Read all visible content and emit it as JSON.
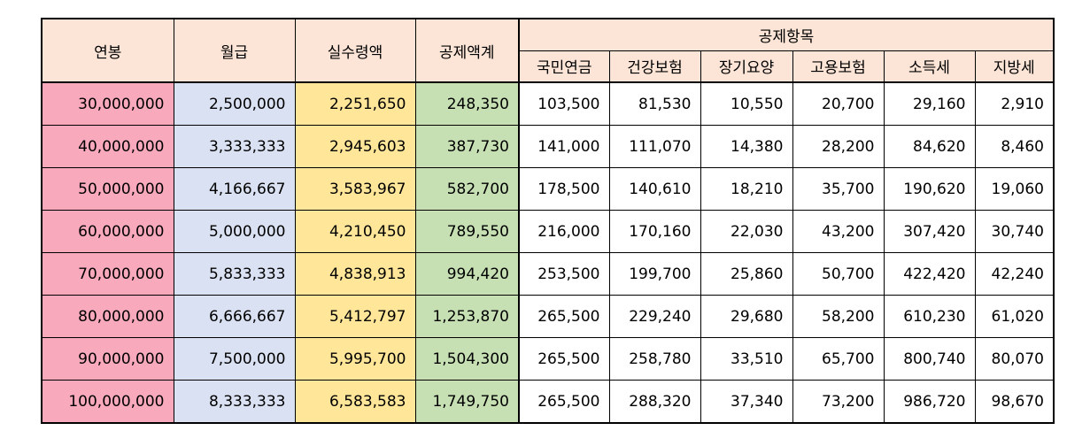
{
  "table": {
    "headers": {
      "annual": "연봉",
      "monthly": "월급",
      "net": "실수령액",
      "deduction_total": "공제액계",
      "deduction_items_group": "공제항목",
      "deduction_items": [
        "국민연금",
        "건강보험",
        "장기요양",
        "고용보험",
        "소득세",
        "지방세"
      ]
    },
    "rows": [
      [
        "30,000,000",
        "2,500,000",
        "2,251,650",
        "248,350",
        "103,500",
        "81,530",
        "10,550",
        "20,700",
        "29,160",
        "2,910"
      ],
      [
        "40,000,000",
        "3,333,333",
        "2,945,603",
        "387,730",
        "141,000",
        "111,070",
        "14,380",
        "28,200",
        "84,620",
        "8,460"
      ],
      [
        "50,000,000",
        "4,166,667",
        "3,583,967",
        "582,700",
        "178,500",
        "140,610",
        "18,210",
        "35,700",
        "190,620",
        "19,060"
      ],
      [
        "60,000,000",
        "5,000,000",
        "4,210,450",
        "789,550",
        "216,000",
        "170,160",
        "22,030",
        "43,200",
        "307,420",
        "30,740"
      ],
      [
        "70,000,000",
        "5,833,333",
        "4,838,913",
        "994,420",
        "253,500",
        "199,700",
        "25,860",
        "50,700",
        "422,420",
        "42,240"
      ],
      [
        "80,000,000",
        "6,666,667",
        "5,412,797",
        "1,253,870",
        "265,500",
        "229,240",
        "29,680",
        "58,200",
        "610,230",
        "61,020"
      ],
      [
        "90,000,000",
        "7,500,000",
        "5,995,700",
        "1,504,300",
        "265,500",
        "258,780",
        "33,510",
        "65,700",
        "800,740",
        "80,070"
      ],
      [
        "100,000,000",
        "8,333,333",
        "6,583,583",
        "1,749,750",
        "265,500",
        "288,320",
        "37,340",
        "73,200",
        "986,720",
        "98,670"
      ]
    ],
    "colors": {
      "header_bg": "#fce4d6",
      "annual_bg": "#f8a9bc",
      "monthly_bg": "#d9e1f2",
      "net_bg": "#ffe699",
      "deduction_total_bg": "#c6e0b4",
      "items_bg": "#ffffff",
      "border": "#000000"
    }
  }
}
